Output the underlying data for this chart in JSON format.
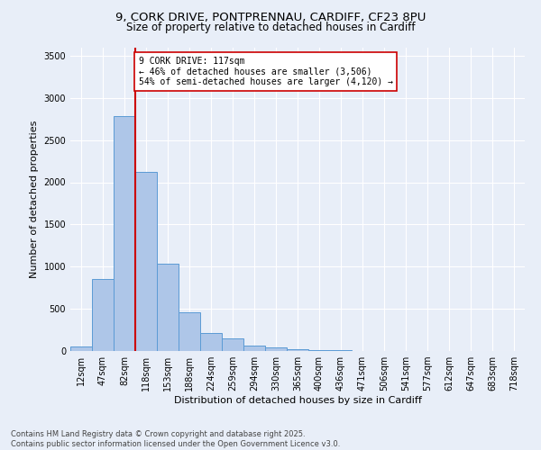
{
  "title_line1": "9, CORK DRIVE, PONTPRENNAU, CARDIFF, CF23 8PU",
  "title_line2": "Size of property relative to detached houses in Cardiff",
  "xlabel": "Distribution of detached houses by size in Cardiff",
  "ylabel": "Number of detached properties",
  "categories": [
    "12sqm",
    "47sqm",
    "82sqm",
    "118sqm",
    "153sqm",
    "188sqm",
    "224sqm",
    "259sqm",
    "294sqm",
    "330sqm",
    "365sqm",
    "400sqm",
    "436sqm",
    "471sqm",
    "506sqm",
    "541sqm",
    "577sqm",
    "612sqm",
    "647sqm",
    "683sqm",
    "718sqm"
  ],
  "values": [
    55,
    850,
    2780,
    2120,
    1040,
    460,
    210,
    150,
    65,
    40,
    25,
    15,
    8,
    5,
    3,
    2,
    1,
    1,
    0,
    0,
    0
  ],
  "bar_color": "#aec6e8",
  "bar_edge_color": "#5b9bd5",
  "background_color": "#e8eef8",
  "grid_color": "#ffffff",
  "vline_color": "#cc0000",
  "annotation_text": "9 CORK DRIVE: 117sqm\n← 46% of detached houses are smaller (3,506)\n54% of semi-detached houses are larger (4,120) →",
  "annotation_box_color": "#ffffff",
  "annotation_box_edge": "#cc0000",
  "ylim": [
    0,
    3600
  ],
  "yticks": [
    0,
    500,
    1000,
    1500,
    2000,
    2500,
    3000,
    3500
  ],
  "footer": "Contains HM Land Registry data © Crown copyright and database right 2025.\nContains public sector information licensed under the Open Government Licence v3.0.",
  "title_fontsize": 9.5,
  "subtitle_fontsize": 8.5,
  "axis_label_fontsize": 8,
  "tick_fontsize": 7,
  "annotation_fontsize": 7,
  "footer_fontsize": 6
}
